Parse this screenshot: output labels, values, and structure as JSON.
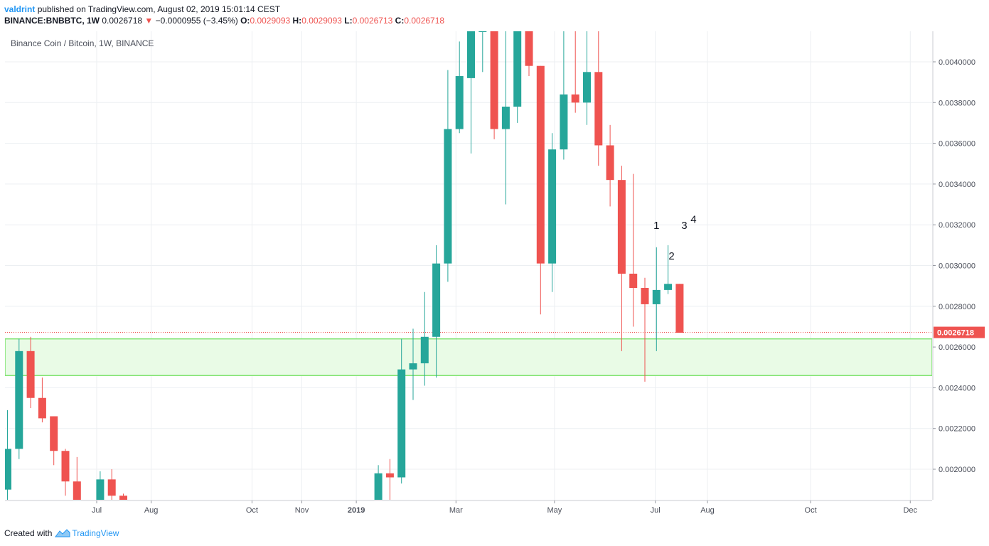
{
  "header": {
    "author": "valdrint",
    "published_text": "published on TradingView.com, August 02, 2019 15:01:14 CEST",
    "symbol": "BINANCE:BNBBTC, 1W",
    "last_price": "0.0026718",
    "down_arrow": "▼",
    "change": "−0.0000955 (−3.45%)",
    "o_label": "O:",
    "o_value": "0.0029093",
    "h_label": "H:",
    "h_value": "0.0029093",
    "l_label": "L:",
    "l_value": "0.0026713",
    "c_label": "C:",
    "c_value": "0.0026718"
  },
  "footer": {
    "created_with": "Created with",
    "brand": "TradingView"
  },
  "colors": {
    "up": "#26a69a",
    "down": "#ef5350",
    "zone_fill": "#e9fbe6",
    "zone_border": "#7ee36f",
    "grid": "#eceff2",
    "price_line": "#ef5350"
  },
  "chart_data": {
    "type": "candlestick",
    "title": "Binance Coin / Bitcoin, 1W, BINANCE",
    "interval": "1W",
    "ylim": [
      0.00185,
      0.00415
    ],
    "y_ticks": [
      "0.0020000",
      "0.0022000",
      "0.0024000",
      "0.0026000",
      "0.0028000",
      "0.0030000",
      "0.0032000",
      "0.0034000",
      "0.0036000",
      "0.0038000",
      "0.0040000"
    ],
    "y_tick_values": [
      0.002,
      0.0022,
      0.0024,
      0.0026,
      0.0028,
      0.003,
      0.0032,
      0.0034,
      0.0036,
      0.0038,
      0.004
    ],
    "x_ticks": [
      {
        "label": "Jul",
        "i": 7.7
      },
      {
        "label": "Aug",
        "i": 12.4
      },
      {
        "label": "Oct",
        "i": 21.1
      },
      {
        "label": "Nov",
        "i": 25.4
      },
      {
        "label": "2019",
        "i": 30.1,
        "bold": true
      },
      {
        "label": "Mar",
        "i": 38.7
      },
      {
        "label": "May",
        "i": 47.2
      },
      {
        "label": "Jul",
        "i": 55.9
      },
      {
        "label": "Aug",
        "i": 60.4
      },
      {
        "label": "Oct",
        "i": 69.3
      },
      {
        "label": "Dec",
        "i": 77.9
      }
    ],
    "current_price": 0.0026718,
    "current_price_label": "0.0026718",
    "support_zone": [
      0.00246,
      0.00264
    ],
    "annotations": [
      {
        "text": "1",
        "i": 56.0,
        "y": 0.00318
      },
      {
        "text": "2",
        "i": 57.3,
        "y": 0.00303
      },
      {
        "text": "3",
        "i": 58.4,
        "y": 0.00318
      },
      {
        "text": "4",
        "i": 59.2,
        "y": 0.00321
      }
    ],
    "candles": [
      {
        "i": 0,
        "o": 0.0019,
        "h": 0.00229,
        "l": 0.00184,
        "c": 0.0021
      },
      {
        "i": 1,
        "o": 0.0021,
        "h": 0.00264,
        "l": 0.00205,
        "c": 0.00258
      },
      {
        "i": 2,
        "o": 0.00258,
        "h": 0.00265,
        "l": 0.0023,
        "c": 0.00235
      },
      {
        "i": 3,
        "o": 0.00235,
        "h": 0.00245,
        "l": 0.00223,
        "c": 0.00225
      },
      {
        "i": 4,
        "o": 0.00226,
        "h": 0.00226,
        "l": 0.00202,
        "c": 0.00209
      },
      {
        "i": 5,
        "o": 0.00209,
        "h": 0.0021,
        "l": 0.00187,
        "c": 0.00194
      },
      {
        "i": 6,
        "o": 0.00194,
        "h": 0.00206,
        "l": 0.0017,
        "c": 0.00185
      },
      {
        "i": 7,
        "o": 0.0018,
        "h": 0.00184,
        "l": 0.0017,
        "c": 0.00176
      },
      {
        "i": 8,
        "o": 0.0018,
        "h": 0.00199,
        "l": 0.00175,
        "c": 0.00195
      },
      {
        "i": 9,
        "o": 0.00195,
        "h": 0.002,
        "l": 0.00182,
        "c": 0.00187
      },
      {
        "i": 10,
        "o": 0.00187,
        "h": 0.00188,
        "l": 0.0017,
        "c": 0.00178
      },
      {
        "i": 31,
        "o": 0.00182,
        "h": 0.00184,
        "l": 0.00178,
        "c": 0.00183
      },
      {
        "i": 32,
        "o": 0.00183,
        "h": 0.00202,
        "l": 0.00181,
        "c": 0.00198
      },
      {
        "i": 33,
        "o": 0.00198,
        "h": 0.00205,
        "l": 0.00183,
        "c": 0.00196
      },
      {
        "i": 34,
        "o": 0.00196,
        "h": 0.00264,
        "l": 0.00193,
        "c": 0.00249
      },
      {
        "i": 35,
        "o": 0.00249,
        "h": 0.00269,
        "l": 0.00234,
        "c": 0.00252
      },
      {
        "i": 36,
        "o": 0.00252,
        "h": 0.00287,
        "l": 0.00241,
        "c": 0.00265
      },
      {
        "i": 37,
        "o": 0.00265,
        "h": 0.0031,
        "l": 0.00245,
        "c": 0.00301
      },
      {
        "i": 38,
        "o": 0.00301,
        "h": 0.00396,
        "l": 0.00292,
        "c": 0.00367
      },
      {
        "i": 39,
        "o": 0.00367,
        "h": 0.0041,
        "l": 0.00365,
        "c": 0.00393
      },
      {
        "i": 40,
        "o": 0.00392,
        "h": 0.00415,
        "l": 0.00355,
        "c": 0.00415
      },
      {
        "i": 41,
        "o": 0.00415,
        "h": 0.00415,
        "l": 0.00395,
        "c": 0.00415
      },
      {
        "i": 42,
        "o": 0.00415,
        "h": 0.00415,
        "l": 0.00362,
        "c": 0.00367
      },
      {
        "i": 43,
        "o": 0.00367,
        "h": 0.00415,
        "l": 0.0033,
        "c": 0.00378
      },
      {
        "i": 44,
        "o": 0.00378,
        "h": 0.00415,
        "l": 0.0037,
        "c": 0.00415
      },
      {
        "i": 45,
        "o": 0.00415,
        "h": 0.00415,
        "l": 0.00393,
        "c": 0.00398
      },
      {
        "i": 46,
        "o": 0.00398,
        "h": 0.00398,
        "l": 0.00276,
        "c": 0.00301
      },
      {
        "i": 47,
        "o": 0.00301,
        "h": 0.00365,
        "l": 0.00287,
        "c": 0.00357
      },
      {
        "i": 48,
        "o": 0.00357,
        "h": 0.00415,
        "l": 0.00352,
        "c": 0.00384
      },
      {
        "i": 49,
        "o": 0.00384,
        "h": 0.00415,
        "l": 0.00375,
        "c": 0.0038
      },
      {
        "i": 50,
        "o": 0.0038,
        "h": 0.00415,
        "l": 0.00369,
        "c": 0.00395
      },
      {
        "i": 51,
        "o": 0.00395,
        "h": 0.00415,
        "l": 0.00349,
        "c": 0.00359
      },
      {
        "i": 52,
        "o": 0.00359,
        "h": 0.00369,
        "l": 0.00329,
        "c": 0.00342
      },
      {
        "i": 53,
        "o": 0.00342,
        "h": 0.00349,
        "l": 0.00258,
        "c": 0.00296
      },
      {
        "i": 54,
        "o": 0.00296,
        "h": 0.00345,
        "l": 0.0027,
        "c": 0.00289
      },
      {
        "i": 55,
        "o": 0.00289,
        "h": 0.00294,
        "l": 0.00243,
        "c": 0.00281
      },
      {
        "i": 56,
        "o": 0.00281,
        "h": 0.00309,
        "l": 0.00258,
        "c": 0.00288
      },
      {
        "i": 57,
        "o": 0.00288,
        "h": 0.0031,
        "l": 0.00286,
        "c": 0.00291
      },
      {
        "i": 58,
        "o": 0.00291,
        "h": 0.00291,
        "l": 0.00267,
        "c": 0.00267
      }
    ]
  }
}
